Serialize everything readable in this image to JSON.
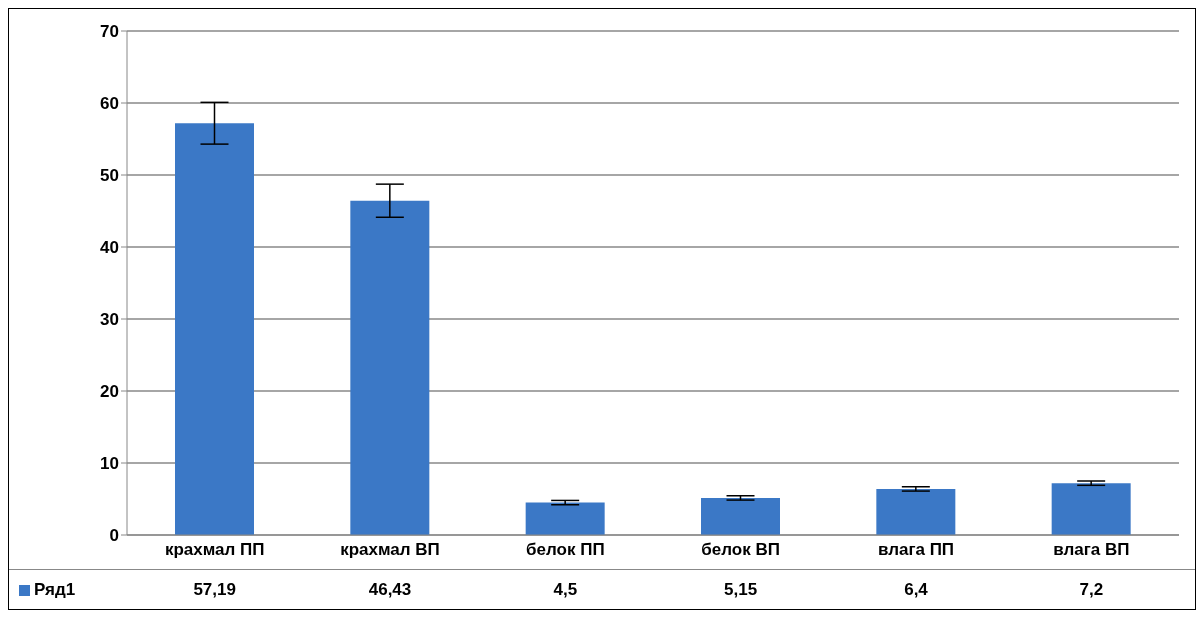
{
  "chart_data": {
    "type": "bar",
    "categories": [
      "крахмал ПП",
      "крахмал ВП",
      "белок ПП",
      "белок  ВП",
      "влага ПП",
      "влага ВП"
    ],
    "series": [
      {
        "name": "Ряд1",
        "color": "#3b78c6",
        "values": [
          57.19,
          46.43,
          4.5,
          5.15,
          6.4,
          7.2
        ],
        "errors": [
          2.9,
          2.3,
          0.3,
          0.3,
          0.3,
          0.3
        ],
        "value_labels": [
          "57,19",
          "46,43",
          "4,5",
          "5,15",
          "6,4",
          "7,2"
        ]
      }
    ],
    "ylim": [
      0,
      70
    ],
    "yticks": [
      0,
      10,
      20,
      30,
      40,
      50,
      60,
      70
    ],
    "grid": "y",
    "legend": "bottom"
  }
}
